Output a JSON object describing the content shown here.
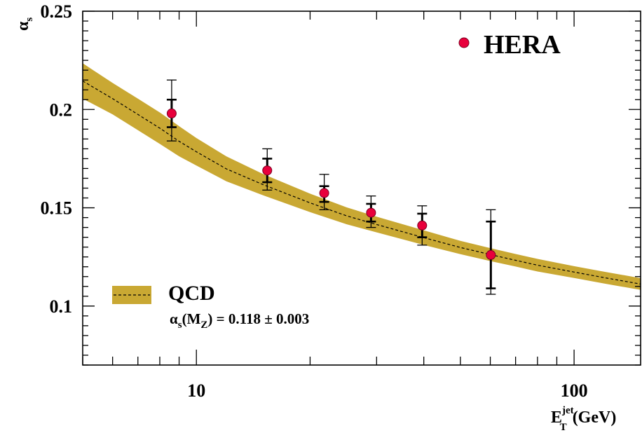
{
  "chart_data": {
    "type": "scatter",
    "x_scale": "log",
    "xlim": [
      5,
      150
    ],
    "ylim": [
      0.07,
      0.25
    ],
    "x_ticks": [
      "10",
      "100"
    ],
    "y_ticks": [
      "0.1",
      "0.15",
      "0.2",
      "0.25"
    ],
    "xlabel": {
      "main": "E",
      "sup": "jet",
      "sub": "T",
      "unit": "(GeV)"
    },
    "ylabel": {
      "main": "α",
      "sub": "s"
    },
    "grid": false,
    "legend_placement": "top-right and lower-left",
    "series": [
      {
        "name": "HERA",
        "kind": "points",
        "color": "#e8003c",
        "points": [
          {
            "x": 8.6,
            "y": 0.198,
            "stat": [
              0.191,
              0.205
            ],
            "total": [
              0.184,
              0.215
            ]
          },
          {
            "x": 15.4,
            "y": 0.169,
            "stat": [
              0.163,
              0.175
            ],
            "total": [
              0.159,
              0.18
            ]
          },
          {
            "x": 21.8,
            "y": 0.1575,
            "stat": [
              0.153,
              0.161
            ],
            "total": [
              0.149,
              0.167
            ]
          },
          {
            "x": 29.0,
            "y": 0.1475,
            "stat": [
              0.143,
              0.152
            ],
            "total": [
              0.14,
              0.156
            ]
          },
          {
            "x": 39.6,
            "y": 0.141,
            "stat": [
              0.135,
              0.147
            ],
            "total": [
              0.131,
              0.151
            ]
          },
          {
            "x": 60.2,
            "y": 0.126,
            "stat": [
              0.109,
              0.143
            ],
            "total": [
              0.106,
              0.149
            ]
          }
        ]
      },
      {
        "name": "QCD",
        "kind": "band",
        "color": "#c9a833",
        "line_style": "dashed",
        "annotation": {
          "prefix": "α",
          "prefix_sub": "s",
          "paren_open": "(M",
          "paren_sub": "Z",
          "paren_close": ")",
          "value": " = 0.118 ± 0.003"
        },
        "x": [
          5,
          6,
          7,
          8,
          9,
          10,
          12,
          15,
          20,
          25,
          30,
          40,
          50,
          60,
          70,
          80,
          100,
          120,
          150
        ],
        "y": [
          0.2145,
          0.2055,
          0.1975,
          0.1905,
          0.1838,
          0.1785,
          0.1698,
          0.1618,
          0.1525,
          0.1459,
          0.1415,
          0.1348,
          0.1298,
          0.1262,
          0.1233,
          0.1208,
          0.1173,
          0.1145,
          0.1112
        ],
        "upper": [
          0.2235,
          0.2135,
          0.2055,
          0.1985,
          0.1915,
          0.1855,
          0.1762,
          0.1672,
          0.1572,
          0.1502,
          0.1455,
          0.1385,
          0.1332,
          0.1295,
          0.1265,
          0.124,
          0.1203,
          0.1175,
          0.1142
        ],
        "lower": [
          0.2055,
          0.1975,
          0.1895,
          0.1825,
          0.1762,
          0.1715,
          0.1635,
          0.1564,
          0.1478,
          0.1416,
          0.1375,
          0.1311,
          0.1264,
          0.1229,
          0.1201,
          0.1176,
          0.1143,
          0.1115,
          0.1082
        ]
      }
    ]
  }
}
